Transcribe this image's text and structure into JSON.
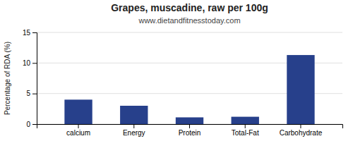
{
  "chart_data": {
    "type": "bar",
    "title": "Grapes, muscadine, raw per 100g",
    "subtitle": "www.dietandfitnesstoday.com",
    "categories": [
      "calcium",
      "Energy",
      "Protein",
      "Total-Fat",
      "Carbohydrate"
    ],
    "values": [
      4.0,
      3.0,
      1.1,
      1.2,
      11.3
    ],
    "color": "#27408b",
    "ylabel": "Percentage of RDA (%)",
    "ylim": [
      0,
      15
    ],
    "yticks": [
      0,
      5,
      10,
      15
    ],
    "grid": true
  }
}
